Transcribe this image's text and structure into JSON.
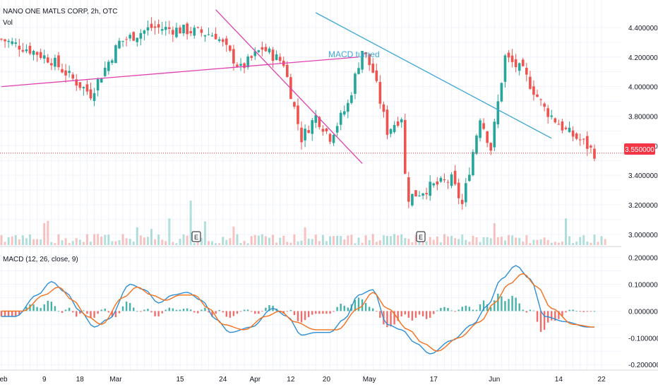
{
  "header": {
    "symbol_title": "NANO ONE MATLS CORP, 2h, OTC",
    "vol_label": "Vol",
    "macd_title": "MACD (12, 26, close, 9)"
  },
  "annotation": {
    "macd_turned": "MACD turned"
  },
  "earnings_marker": "E",
  "colors": {
    "up": "#26a69a",
    "down": "#ef5350",
    "grid": "#f0f3fa",
    "pink_line": "#e040b0",
    "blue_line": "#3fa7d6",
    "macd_line": "#2e8fd6",
    "signal_line": "#f4701d",
    "price_tag": "#f23645"
  },
  "chart_data": [
    {
      "type": "candlestick",
      "symbol": "NANO ONE MATLS CORP",
      "timeframe": "2h",
      "exchange": "OTC",
      "ylim": [
        2.98,
        4.5
      ],
      "y_ticks": [
        "4.400000",
        "4.200000",
        "4.000000",
        "3.800000",
        "3.600000",
        "3.400000",
        "3.200000",
        "3.000000"
      ],
      "last_price": "3.550000",
      "x_ticks": [
        "Feb",
        "9",
        "18",
        "Mar",
        "15",
        "24",
        "Apr",
        "12",
        "20",
        "May",
        "17",
        "Jun",
        "14",
        "22"
      ],
      "x_tick_index": [
        0,
        12,
        22,
        32,
        50,
        62,
        71,
        81,
        91,
        103,
        121,
        138,
        156,
        168
      ],
      "segments": [
        {
          "from": 0,
          "to": 8,
          "start": 4.32,
          "end": 4.25
        },
        {
          "from": 8,
          "to": 14,
          "start": 4.25,
          "end": 4.18
        },
        {
          "from": 14,
          "to": 20,
          "start": 4.18,
          "end": 4.05
        },
        {
          "from": 20,
          "to": 25,
          "start": 4.05,
          "end": 3.95
        },
        {
          "from": 25,
          "to": 33,
          "start": 3.95,
          "end": 4.3
        },
        {
          "from": 33,
          "to": 42,
          "start": 4.3,
          "end": 4.4
        },
        {
          "from": 42,
          "to": 52,
          "start": 4.4,
          "end": 4.38
        },
        {
          "from": 52,
          "to": 60,
          "start": 4.38,
          "end": 4.35
        },
        {
          "from": 60,
          "to": 67,
          "start": 4.35,
          "end": 4.12
        },
        {
          "from": 67,
          "to": 73,
          "start": 4.12,
          "end": 4.26
        },
        {
          "from": 73,
          "to": 79,
          "start": 4.26,
          "end": 4.16
        },
        {
          "from": 79,
          "to": 84,
          "start": 4.16,
          "end": 3.65
        },
        {
          "from": 84,
          "to": 88,
          "start": 3.65,
          "end": 3.8
        },
        {
          "from": 88,
          "to": 92,
          "start": 3.8,
          "end": 3.66
        },
        {
          "from": 92,
          "to": 97,
          "start": 3.66,
          "end": 3.88
        },
        {
          "from": 97,
          "to": 101,
          "start": 3.88,
          "end": 4.25
        },
        {
          "from": 101,
          "to": 104,
          "start": 4.25,
          "end": 4.1
        },
        {
          "from": 104,
          "to": 108,
          "start": 4.1,
          "end": 3.7
        },
        {
          "from": 108,
          "to": 112,
          "start": 3.7,
          "end": 3.8
        },
        {
          "from": 112,
          "to": 113,
          "start": 3.8,
          "end": 3.7
        },
        {
          "from": 113,
          "to": 114,
          "start": 3.4,
          "end": 3.25
        },
        {
          "from": 114,
          "to": 120,
          "start": 3.25,
          "end": 3.32
        },
        {
          "from": 120,
          "to": 126,
          "start": 3.32,
          "end": 3.37
        },
        {
          "from": 126,
          "to": 129,
          "start": 3.37,
          "end": 3.2
        },
        {
          "from": 129,
          "to": 134,
          "start": 3.2,
          "end": 3.8
        },
        {
          "from": 134,
          "to": 137,
          "start": 3.8,
          "end": 3.58
        },
        {
          "from": 137,
          "to": 141,
          "start": 3.58,
          "end": 4.2
        },
        {
          "from": 141,
          "to": 146,
          "start": 4.2,
          "end": 4.1
        },
        {
          "from": 146,
          "to": 152,
          "start": 4.1,
          "end": 3.85
        },
        {
          "from": 152,
          "to": 158,
          "start": 3.85,
          "end": 3.7
        },
        {
          "from": 158,
          "to": 163,
          "start": 3.7,
          "end": 3.62
        },
        {
          "from": 163,
          "to": 166,
          "start": 3.62,
          "end": 3.55
        }
      ],
      "trendlines": [
        {
          "name": "pink-support",
          "x1": 0,
          "y1": 4.0,
          "x2": 100,
          "y2": 4.2
        },
        {
          "name": "pink-down",
          "x1": 60,
          "y1": 4.52,
          "x2": 101,
          "y2": 3.48
        },
        {
          "name": "blue-down",
          "x1": 88,
          "y1": 4.5,
          "x2": 154,
          "y2": 3.65
        }
      ]
    },
    {
      "type": "bar",
      "name": "Vol",
      "note": "volume histogram overlaid on price pane",
      "typical_value": 2,
      "spikes": [
        {
          "index": 47,
          "value": 9
        },
        {
          "index": 53,
          "value": 15
        },
        {
          "index": 57,
          "value": 8
        },
        {
          "index": 38,
          "value": 6
        }
      ]
    },
    {
      "type": "line",
      "title": "MACD (12, 26, close, 9)",
      "ylim": [
        -0.21,
        0.22
      ],
      "y_ticks": [
        "0.200000",
        "0.100000",
        "0.000000",
        "-0.100000",
        "-0.200000"
      ],
      "macd_keypoints": [
        [
          0,
          -0.02
        ],
        [
          4,
          -0.02
        ],
        [
          10,
          0.06
        ],
        [
          14,
          0.11
        ],
        [
          18,
          0.07
        ],
        [
          22,
          0.0
        ],
        [
          26,
          -0.06
        ],
        [
          30,
          -0.03
        ],
        [
          36,
          0.1
        ],
        [
          40,
          0.08
        ],
        [
          44,
          0.03
        ],
        [
          48,
          0.06
        ],
        [
          52,
          0.07
        ],
        [
          56,
          0.04
        ],
        [
          60,
          -0.03
        ],
        [
          64,
          -0.08
        ],
        [
          70,
          -0.06
        ],
        [
          76,
          0.01
        ],
        [
          80,
          -0.02
        ],
        [
          84,
          -0.09
        ],
        [
          88,
          -0.08
        ],
        [
          92,
          -0.08
        ],
        [
          96,
          -0.03
        ],
        [
          100,
          0.06
        ],
        [
          104,
          0.08
        ],
        [
          108,
          -0.05
        ],
        [
          112,
          -0.07
        ],
        [
          116,
          -0.12
        ],
        [
          120,
          -0.16
        ],
        [
          126,
          -0.11
        ],
        [
          132,
          -0.05
        ],
        [
          136,
          0.02
        ],
        [
          140,
          0.12
        ],
        [
          144,
          0.17
        ],
        [
          148,
          0.12
        ],
        [
          152,
          -0.02
        ],
        [
          158,
          -0.04
        ],
        [
          164,
          -0.06
        ],
        [
          166,
          -0.06
        ]
      ],
      "signal_keypoints": [
        [
          0,
          0.0
        ],
        [
          6,
          0.0
        ],
        [
          12,
          0.06
        ],
        [
          16,
          0.09
        ],
        [
          20,
          0.04
        ],
        [
          24,
          -0.02
        ],
        [
          28,
          -0.05
        ],
        [
          34,
          0.05
        ],
        [
          38,
          0.09
        ],
        [
          42,
          0.06
        ],
        [
          46,
          0.04
        ],
        [
          50,
          0.06
        ],
        [
          54,
          0.06
        ],
        [
          58,
          0.01
        ],
        [
          62,
          -0.05
        ],
        [
          68,
          -0.07
        ],
        [
          74,
          -0.02
        ],
        [
          78,
          0.0
        ],
        [
          82,
          -0.04
        ],
        [
          88,
          -0.07
        ],
        [
          94,
          -0.07
        ],
        [
          100,
          0.01
        ],
        [
          104,
          0.07
        ],
        [
          108,
          0.01
        ],
        [
          114,
          -0.07
        ],
        [
          118,
          -0.12
        ],
        [
          122,
          -0.15
        ],
        [
          128,
          -0.1
        ],
        [
          134,
          -0.04
        ],
        [
          138,
          0.03
        ],
        [
          142,
          0.1
        ],
        [
          146,
          0.14
        ],
        [
          150,
          0.09
        ],
        [
          154,
          0.01
        ],
        [
          160,
          -0.05
        ],
        [
          166,
          -0.06
        ]
      ]
    }
  ]
}
